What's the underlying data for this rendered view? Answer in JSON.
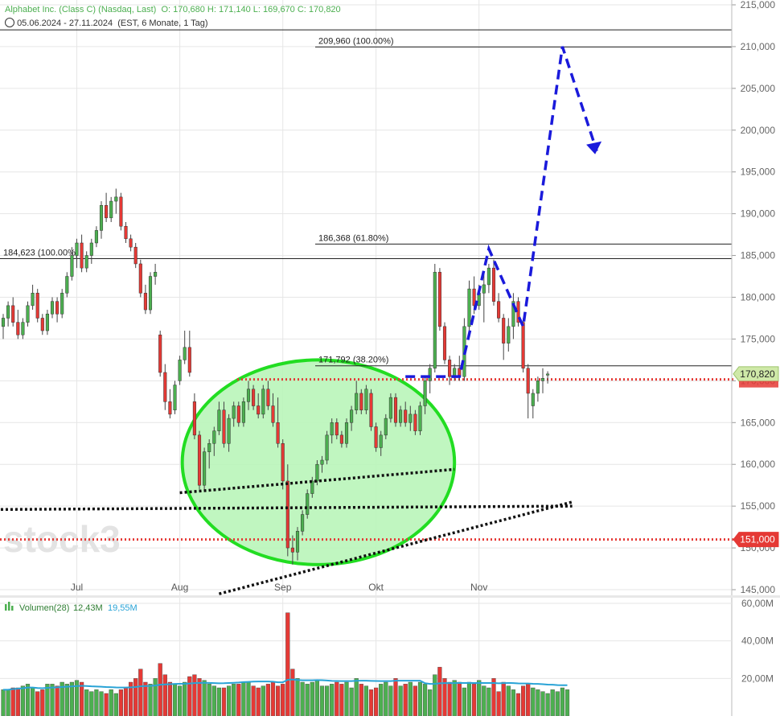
{
  "header": {
    "instrument": "Alphabet Inc. (Class C) (Nasdaq, Last)",
    "ohlc": "O: 170,680  H: 171,140  L: 169,670  C: 170,820",
    "range": "05.06.2024 - 27.11.2024",
    "interval": "(EST, 6 Monate, 1 Tag)"
  },
  "watermark": "stock3",
  "colors": {
    "up": "#4caf50",
    "down": "#e53935",
    "ellipse_fill": "#b9f5b9",
    "ellipse_stroke": "#22dd22",
    "projection": "#1a1adb",
    "support_line": "#e53935",
    "trend_line": "#111111",
    "volume_avg": "#29a3d6"
  },
  "chart_data": [
    {
      "type": "candlestick",
      "x_labels": [
        "Jul",
        "Aug",
        "Sep",
        "Okt",
        "Nov"
      ],
      "ylim": [
        145000,
        215000
      ],
      "y_ticks": [
        "145,000",
        "150,000",
        "155,000",
        "160,000",
        "165,000",
        "170,000",
        "175,000",
        "180,000",
        "185,000",
        "190,000",
        "195,000",
        "200,000",
        "205,000",
        "210,000",
        "215,000"
      ],
      "candles_ohlc": [
        [
          176.5,
          178.0,
          175.0,
          177.5
        ],
        [
          177.5,
          179.5,
          176.5,
          179.0
        ],
        [
          179.0,
          180.0,
          176.5,
          177.0
        ],
        [
          177.0,
          178.5,
          175.0,
          175.5
        ],
        [
          175.5,
          177.5,
          175.0,
          177.0
        ],
        [
          177.0,
          179.5,
          176.5,
          179.0
        ],
        [
          179.0,
          181.5,
          178.5,
          180.5
        ],
        [
          180.5,
          181.0,
          177.0,
          177.5
        ],
        [
          177.5,
          178.0,
          175.5,
          176.0
        ],
        [
          176.0,
          178.5,
          175.5,
          178.0
        ],
        [
          178.0,
          180.0,
          177.5,
          179.5
        ],
        [
          179.5,
          180.0,
          177.0,
          178.0
        ],
        [
          178.0,
          181.0,
          177.5,
          180.5
        ],
        [
          180.5,
          183.0,
          180.0,
          182.5
        ],
        [
          182.5,
          186.0,
          182.0,
          185.0
        ],
        [
          185.0,
          187.0,
          183.5,
          186.5
        ],
        [
          186.5,
          187.5,
          183.0,
          183.5
        ],
        [
          183.5,
          185.5,
          183.0,
          185.0
        ],
        [
          185.0,
          187.0,
          184.0,
          186.5
        ],
        [
          186.5,
          188.5,
          186.0,
          188.0
        ],
        [
          188.0,
          191.5,
          187.0,
          191.0
        ],
        [
          191.0,
          192.5,
          189.0,
          189.5
        ],
        [
          189.5,
          192.0,
          189.0,
          191.5
        ],
        [
          191.5,
          193.0,
          190.0,
          192.0
        ],
        [
          192.0,
          192.5,
          188.0,
          188.5
        ],
        [
          188.5,
          189.0,
          186.5,
          187.0
        ],
        [
          187.0,
          187.5,
          185.5,
          186.0
        ],
        [
          186.0,
          186.5,
          183.5,
          184.0
        ],
        [
          184.0,
          184.5,
          180.0,
          180.5
        ],
        [
          180.5,
          181.5,
          178.0,
          178.5
        ],
        [
          178.5,
          183.0,
          178.0,
          182.5
        ],
        [
          182.5,
          184.0,
          181.5,
          183.0
        ],
        [
          175.5,
          176.0,
          170.5,
          171.0
        ],
        [
          171.0,
          172.0,
          166.5,
          167.5
        ],
        [
          167.5,
          169.0,
          165.5,
          166.0
        ],
        [
          166.5,
          170.0,
          166.0,
          169.5
        ],
        [
          170.0,
          173.0,
          169.5,
          172.5
        ],
        [
          172.5,
          176.0,
          172.0,
          174.0
        ],
        [
          174.0,
          176.0,
          170.5,
          171.0
        ],
        [
          167.5,
          168.5,
          163.0,
          163.5
        ],
        [
          163.5,
          164.0,
          157.0,
          157.5
        ],
        [
          157.5,
          162.0,
          157.0,
          161.5
        ],
        [
          161.5,
          163.0,
          159.5,
          162.5
        ],
        [
          162.5,
          164.5,
          161.0,
          164.0
        ],
        [
          164.0,
          167.5,
          163.5,
          166.5
        ],
        [
          166.5,
          167.5,
          162.0,
          162.5
        ],
        [
          162.5,
          166.0,
          161.5,
          165.5
        ],
        [
          165.5,
          167.5,
          164.5,
          167.0
        ],
        [
          167.0,
          167.5,
          164.5,
          165.0
        ],
        [
          165.0,
          168.0,
          164.5,
          167.5
        ],
        [
          167.5,
          170.0,
          166.5,
          169.0
        ],
        [
          169.0,
          169.5,
          166.5,
          167.0
        ],
        [
          167.0,
          168.5,
          165.5,
          166.0
        ],
        [
          166.0,
          169.5,
          165.5,
          169.0
        ],
        [
          169.0,
          170.0,
          166.5,
          167.0
        ],
        [
          167.0,
          168.5,
          164.5,
          165.0
        ],
        [
          165.0,
          168.0,
          162.0,
          162.5
        ],
        [
          162.5,
          163.0,
          157.0,
          158.0
        ],
        [
          158.0,
          160.0,
          149.0,
          150.0
        ],
        [
          150.0,
          151.5,
          148.0,
          149.5
        ],
        [
          149.5,
          152.5,
          148.5,
          152.0
        ],
        [
          152.0,
          154.5,
          151.5,
          154.0
        ],
        [
          154.0,
          157.0,
          153.5,
          156.5
        ],
        [
          156.5,
          158.5,
          156.0,
          158.0
        ],
        [
          158.0,
          160.5,
          157.5,
          160.0
        ],
        [
          160.0,
          161.0,
          159.0,
          160.5
        ],
        [
          160.5,
          164.0,
          160.0,
          163.5
        ],
        [
          163.5,
          165.5,
          162.5,
          165.0
        ],
        [
          165.0,
          165.5,
          163.0,
          163.5
        ],
        [
          163.5,
          164.0,
          162.0,
          162.5
        ],
        [
          162.5,
          165.5,
          162.0,
          165.0
        ],
        [
          165.0,
          167.0,
          164.0,
          166.5
        ],
        [
          166.5,
          170.0,
          166.0,
          168.5
        ],
        [
          168.5,
          169.0,
          166.0,
          166.5
        ],
        [
          166.5,
          169.5,
          166.0,
          169.0
        ],
        [
          168.5,
          169.0,
          164.0,
          164.5
        ],
        [
          164.5,
          165.0,
          161.5,
          162.0
        ],
        [
          162.0,
          164.0,
          161.0,
          163.5
        ],
        [
          163.5,
          166.0,
          163.0,
          165.5
        ],
        [
          165.5,
          168.5,
          165.0,
          168.0
        ],
        [
          168.0,
          168.5,
          164.5,
          165.0
        ],
        [
          165.0,
          167.0,
          164.5,
          166.5
        ],
        [
          166.5,
          167.5,
          164.5,
          165.0
        ],
        [
          165.0,
          167.0,
          164.0,
          166.0
        ],
        [
          166.0,
          166.5,
          163.5,
          164.0
        ],
        [
          164.0,
          167.5,
          163.5,
          167.0
        ],
        [
          167.0,
          170.5,
          166.0,
          170.0
        ],
        [
          170.0,
          172.0,
          168.5,
          171.5
        ],
        [
          171.5,
          184.0,
          171.0,
          183.0
        ],
        [
          183.0,
          183.5,
          176.0,
          176.5
        ],
        [
          176.5,
          177.0,
          172.0,
          172.5
        ],
        [
          172.5,
          173.0,
          169.5,
          170.5
        ],
        [
          170.5,
          172.0,
          170.0,
          171.5
        ],
        [
          171.5,
          173.0,
          170.0,
          170.5
        ],
        [
          170.5,
          177.5,
          170.0,
          176.5
        ],
        [
          176.5,
          182.0,
          176.0,
          181.0
        ],
        [
          181.0,
          182.5,
          178.0,
          179.0
        ],
        [
          179.0,
          181.5,
          178.5,
          180.5
        ],
        [
          180.5,
          183.0,
          177.0,
          181.5
        ],
        [
          181.5,
          184.0,
          180.5,
          183.5
        ],
        [
          183.5,
          184.5,
          179.0,
          179.5
        ],
        [
          179.5,
          180.5,
          177.0,
          177.5
        ],
        [
          177.5,
          178.0,
          172.5,
          174.5
        ],
        [
          174.5,
          177.5,
          173.5,
          176.5
        ],
        [
          176.5,
          180.5,
          175.0,
          179.5
        ],
        [
          179.5,
          180.0,
          176.5,
          177.0
        ],
        [
          177.0,
          177.5,
          171.0,
          171.5
        ],
        [
          171.5,
          172.0,
          165.5,
          168.5
        ],
        [
          167.0,
          169.0,
          165.5,
          168.5
        ],
        [
          168.5,
          170.5,
          167.5,
          170.0
        ],
        [
          170.0,
          171.5,
          168.5,
          170.3
        ],
        [
          170.68,
          171.14,
          169.67,
          170.82
        ]
      ],
      "levels": [
        {
          "label": "209,960 (100.00%)",
          "value": 209.96
        },
        {
          "label": "186,368 (61.80%)",
          "value": 186.368
        },
        {
          "label": "184,623 (100.00%)",
          "value": 184.623
        },
        {
          "label": "171,792 (38.20%)",
          "value": 171.792
        }
      ],
      "support_levels": [
        170.164,
        151.0
      ],
      "price_tags": [
        {
          "label": "170,820",
          "value": 170.82
        },
        {
          "label": "151,000",
          "value": 151.0
        }
      ],
      "trend_lines": [
        {
          "from": [
            -0.5,
            154.6
          ],
          "to": [
            116.0,
            155.0
          ]
        },
        {
          "from": [
            44.0,
            144.5
          ],
          "to": [
            116.0,
            155.5
          ]
        }
      ],
      "channel_line": {
        "from": [
          36.0,
          156.6
        ],
        "to": [
          92.0,
          159.4
        ]
      },
      "ellipse": {
        "x_range": [
          36.5,
          92.0
        ],
        "y_range": [
          148.0,
          172.5
        ]
      },
      "projection_path": [
        [
          82,
          170.5
        ],
        [
          93,
          170.5
        ],
        [
          99,
          185.8
        ],
        [
          106,
          176.5
        ],
        [
          114,
          210.0
        ],
        [
          121,
          197.5
        ]
      ],
      "x_label_candle_index": [
        15,
        36,
        57,
        76,
        97
      ]
    },
    {
      "type": "bar",
      "title": "Volumen(28)",
      "series_values": [
        "12,43M",
        "19,55M"
      ],
      "ylim": [
        0,
        60
      ],
      "y_ticks": [
        "20,00M",
        "40,00M",
        "60,00M"
      ],
      "values": [
        14,
        14,
        15,
        15,
        16,
        17,
        15,
        13,
        14,
        17,
        17,
        16,
        18,
        17,
        18,
        19,
        18,
        14,
        13,
        14,
        13,
        12,
        14,
        12,
        14,
        15,
        18,
        20,
        25,
        18,
        17,
        20,
        28,
        22,
        18,
        17,
        16,
        18,
        21,
        22,
        20,
        19,
        17,
        16,
        15,
        15,
        16,
        17,
        17,
        18,
        18,
        16,
        15,
        16,
        17,
        18,
        16,
        17,
        55,
        25,
        20,
        18,
        17,
        18,
        19,
        16,
        16,
        17,
        18,
        17,
        18,
        15,
        20,
        17,
        16,
        14,
        15,
        17,
        18,
        16,
        20,
        16,
        17,
        18,
        16,
        18,
        17,
        14,
        22,
        26,
        20,
        18,
        19,
        18,
        15,
        18,
        17,
        19,
        16,
        15,
        20,
        13,
        18,
        16,
        14,
        12,
        16,
        17,
        15,
        14,
        13,
        12,
        14,
        13,
        15,
        14
      ]
    }
  ]
}
